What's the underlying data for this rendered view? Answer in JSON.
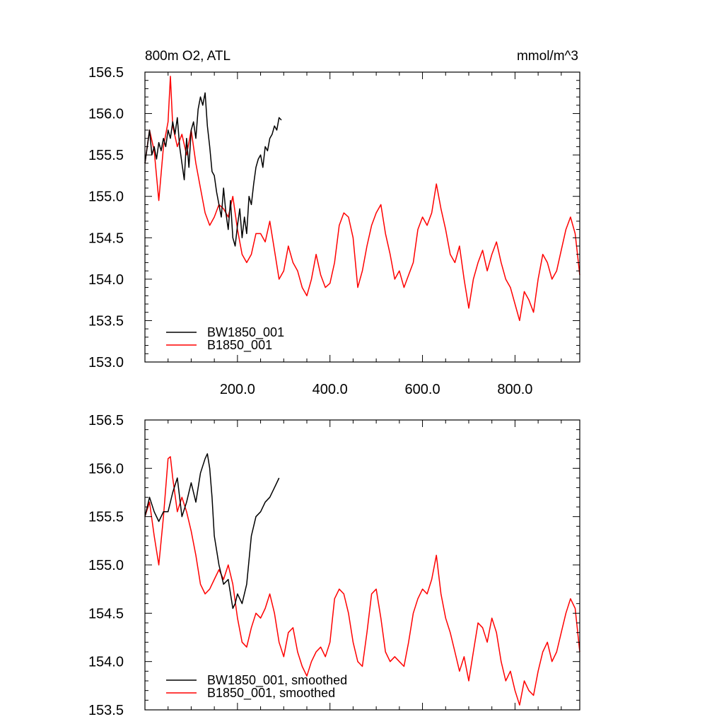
{
  "chart_data": [
    {
      "type": "line",
      "title_left": "800m O2, ATL",
      "title_right": "mmol/m^3",
      "xlim": [
        0,
        940
      ],
      "ylim": [
        153.0,
        156.5
      ],
      "x_ticks": [
        200,
        400,
        600,
        800
      ],
      "x_tick_labels": [
        "200.0",
        "400.0",
        "600.0",
        "800.0"
      ],
      "y_ticks": [
        153.0,
        153.5,
        154.0,
        154.5,
        155.0,
        155.5,
        156.0,
        156.5
      ],
      "y_tick_labels": [
        "153.0",
        "153.5",
        "154.0",
        "154.5",
        "155.0",
        "155.5",
        "156.0",
        "156.5"
      ],
      "legend_position": "bottom-left",
      "series": [
        {
          "name": "BW1850_001",
          "color": "#000000",
          "x": [
            0,
            5,
            10,
            15,
            20,
            25,
            30,
            35,
            40,
            45,
            50,
            55,
            60,
            65,
            70,
            75,
            80,
            85,
            90,
            95,
            100,
            105,
            110,
            115,
            120,
            125,
            130,
            135,
            140,
            145,
            150,
            155,
            160,
            165,
            170,
            175,
            180,
            185,
            190,
            195,
            200,
            205,
            210,
            215,
            220,
            225,
            230,
            235,
            240,
            245,
            250,
            255,
            260,
            265,
            270,
            275,
            280,
            285,
            290,
            295
          ],
          "values": [
            155.4,
            155.6,
            155.8,
            155.5,
            155.6,
            155.45,
            155.65,
            155.55,
            155.7,
            155.6,
            155.8,
            155.7,
            155.9,
            155.75,
            155.95,
            155.6,
            155.4,
            155.2,
            155.7,
            155.35,
            155.8,
            155.9,
            155.7,
            156.05,
            156.2,
            156.1,
            156.25,
            155.85,
            155.6,
            155.3,
            155.25,
            155.05,
            154.9,
            154.75,
            155.1,
            154.8,
            154.6,
            154.95,
            154.5,
            154.4,
            154.65,
            154.85,
            154.5,
            154.75,
            154.55,
            155.0,
            154.9,
            155.15,
            155.35,
            155.45,
            155.5,
            155.35,
            155.6,
            155.55,
            155.7,
            155.75,
            155.85,
            155.8,
            155.95,
            155.92
          ]
        },
        {
          "name": "B1850_001",
          "color": "#ff0000",
          "x": [
            0,
            10,
            20,
            30,
            40,
            50,
            55,
            60,
            70,
            80,
            90,
            100,
            110,
            120,
            130,
            140,
            150,
            160,
            170,
            180,
            190,
            200,
            210,
            220,
            230,
            240,
            250,
            260,
            270,
            280,
            290,
            300,
            310,
            320,
            330,
            340,
            350,
            360,
            370,
            380,
            390,
            400,
            410,
            420,
            430,
            440,
            450,
            460,
            470,
            480,
            490,
            500,
            510,
            520,
            530,
            540,
            550,
            560,
            570,
            580,
            590,
            600,
            610,
            620,
            630,
            640,
            650,
            660,
            670,
            680,
            690,
            700,
            710,
            720,
            730,
            740,
            750,
            760,
            770,
            780,
            790,
            800,
            810,
            820,
            830,
            840,
            850,
            860,
            870,
            880,
            890,
            900,
            910,
            920,
            930,
            940
          ],
          "values": [
            155.4,
            155.8,
            155.55,
            154.95,
            155.6,
            155.9,
            156.45,
            155.85,
            155.6,
            155.75,
            155.5,
            155.8,
            155.4,
            155.1,
            154.8,
            154.65,
            154.75,
            154.9,
            154.85,
            154.75,
            155.0,
            154.6,
            154.3,
            154.2,
            154.3,
            154.55,
            154.55,
            154.45,
            154.7,
            154.35,
            154.0,
            154.1,
            154.4,
            154.2,
            154.1,
            153.9,
            153.8,
            154.0,
            154.3,
            154.05,
            153.9,
            153.95,
            154.2,
            154.65,
            154.8,
            154.75,
            154.5,
            153.9,
            154.1,
            154.4,
            154.65,
            154.8,
            154.9,
            154.55,
            154.3,
            154.0,
            154.1,
            153.9,
            154.05,
            154.2,
            154.6,
            154.75,
            154.65,
            154.8,
            155.15,
            154.85,
            154.6,
            154.3,
            154.2,
            154.4,
            154.0,
            153.65,
            154.0,
            154.2,
            154.35,
            154.1,
            154.3,
            154.45,
            154.2,
            154.0,
            153.9,
            153.7,
            153.5,
            153.85,
            153.75,
            153.6,
            154.0,
            154.3,
            154.2,
            154.0,
            154.1,
            154.35,
            154.6,
            154.75,
            154.55,
            154.05
          ]
        }
      ]
    },
    {
      "type": "line",
      "xlim": [
        0,
        940
      ],
      "ylim": [
        153.5,
        156.5
      ],
      "y_ticks": [
        153.5,
        154.0,
        154.5,
        155.0,
        155.5,
        156.0,
        156.5
      ],
      "y_tick_labels": [
        "153.5",
        "154.0",
        "154.5",
        "155.0",
        "155.5",
        "156.0",
        "156.5"
      ],
      "legend_position": "bottom-left",
      "series": [
        {
          "name": "BW1850_001, smoothed",
          "color": "#000000",
          "x": [
            0,
            10,
            20,
            30,
            40,
            50,
            60,
            70,
            80,
            90,
            100,
            110,
            120,
            130,
            135,
            140,
            145,
            150,
            160,
            170,
            180,
            190,
            195,
            200,
            210,
            220,
            230,
            240,
            250,
            260,
            270,
            280,
            290
          ],
          "values": [
            155.5,
            155.7,
            155.55,
            155.45,
            155.55,
            155.55,
            155.75,
            155.9,
            155.5,
            155.65,
            155.85,
            155.65,
            155.95,
            156.1,
            156.15,
            156.0,
            155.7,
            155.3,
            155.0,
            154.8,
            154.85,
            154.55,
            154.6,
            154.7,
            154.6,
            154.8,
            155.3,
            155.5,
            155.55,
            155.65,
            155.7,
            155.8,
            155.9
          ]
        },
        {
          "name": "B1850_001, smoothed",
          "color": "#ff0000",
          "x": [
            0,
            10,
            20,
            30,
            40,
            50,
            55,
            60,
            70,
            80,
            90,
            100,
            110,
            120,
            130,
            140,
            150,
            160,
            170,
            180,
            190,
            200,
            210,
            220,
            230,
            240,
            250,
            260,
            270,
            280,
            290,
            300,
            310,
            320,
            330,
            340,
            350,
            360,
            370,
            380,
            390,
            400,
            410,
            420,
            430,
            440,
            450,
            460,
            470,
            480,
            490,
            500,
            510,
            520,
            530,
            540,
            550,
            560,
            570,
            580,
            590,
            600,
            610,
            620,
            630,
            640,
            650,
            660,
            670,
            680,
            690,
            700,
            710,
            720,
            730,
            740,
            750,
            760,
            770,
            780,
            790,
            800,
            810,
            820,
            830,
            840,
            850,
            860,
            870,
            880,
            890,
            900,
            910,
            920,
            930,
            940
          ],
          "values": [
            155.5,
            155.65,
            155.3,
            155.0,
            155.5,
            156.1,
            156.12,
            155.9,
            155.55,
            155.7,
            155.55,
            155.35,
            155.1,
            154.8,
            154.7,
            154.75,
            154.85,
            154.95,
            154.85,
            155.0,
            154.8,
            154.45,
            154.2,
            154.15,
            154.35,
            154.5,
            154.45,
            154.55,
            154.7,
            154.5,
            154.2,
            154.05,
            154.3,
            154.35,
            154.1,
            153.95,
            153.85,
            154.0,
            154.1,
            154.15,
            154.05,
            154.2,
            154.65,
            154.75,
            154.7,
            154.5,
            154.2,
            154.0,
            153.95,
            154.3,
            154.7,
            154.75,
            154.45,
            154.1,
            154.0,
            154.05,
            154.0,
            153.95,
            154.2,
            154.5,
            154.65,
            154.75,
            154.7,
            154.85,
            155.1,
            154.7,
            154.45,
            154.3,
            154.1,
            153.9,
            154.05,
            153.8,
            154.1,
            154.4,
            154.35,
            154.2,
            154.45,
            154.3,
            154.0,
            153.8,
            153.9,
            153.7,
            153.55,
            153.8,
            153.7,
            153.65,
            153.9,
            154.1,
            154.2,
            154.0,
            154.1,
            154.3,
            154.5,
            154.65,
            154.55,
            154.1
          ]
        }
      ]
    }
  ]
}
